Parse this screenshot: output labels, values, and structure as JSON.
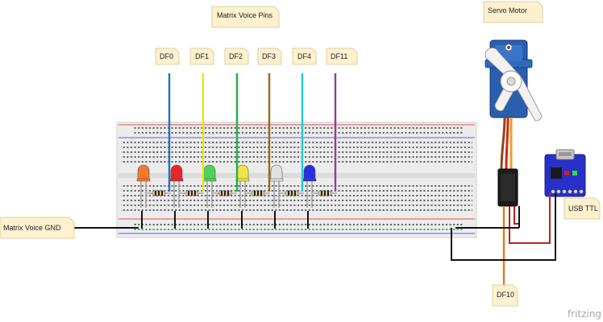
{
  "labels": {
    "matrix_voice_pins": "Matrix Voice Pins",
    "servo_motor": "Servo Motor",
    "matrix_voice_gnd": "Matrix Voice GND",
    "usb_ttl": "USB TTL",
    "df10": "DF10",
    "brand": "fritzing"
  },
  "pins": [
    {
      "label": "DF0",
      "wire_color": "#1f74c9"
    },
    {
      "label": "DF1",
      "wire_color": "#e5e51a"
    },
    {
      "label": "DF2",
      "wire_color": "#22b14c"
    },
    {
      "label": "DF3",
      "wire_color": "#9a6b16"
    },
    {
      "label": "DF4",
      "wire_color": "#25c9cf"
    },
    {
      "label": "DF11",
      "wire_color": "#8f3f93"
    }
  ],
  "leds": [
    {
      "color_name": "orange",
      "color": "#f07a2a"
    },
    {
      "color_name": "red",
      "color": "#e8262a"
    },
    {
      "color_name": "green",
      "color": "#4fd35a"
    },
    {
      "color_name": "yellow",
      "color": "#f1e545"
    },
    {
      "color_name": "white",
      "color": "#e2e2e2"
    },
    {
      "color_name": "blue",
      "color": "#2a2fe0"
    }
  ],
  "colors": {
    "note_fill": "#fdf1cf",
    "breadboard": "#ededed",
    "rail_red": "#e35454",
    "rail_blue": "#5a64c8",
    "servo_body": "#2a5fb0",
    "usb_board": "#2830c8",
    "ground_wire": "#111111",
    "power_wire": "#c0201c",
    "signal_wire": "#e7781c"
  }
}
